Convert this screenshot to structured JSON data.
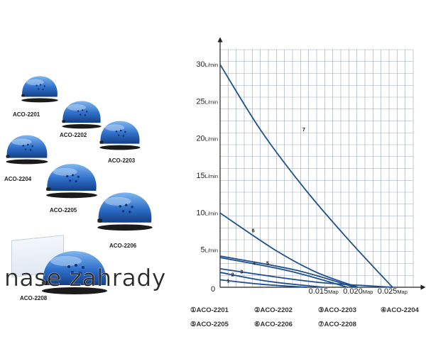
{
  "products": [
    {
      "label": "ACO-2201"
    },
    {
      "label": "ACO-2202"
    },
    {
      "label": "ACO-2203"
    },
    {
      "label": "ACO-2204"
    },
    {
      "label": "ACO-2205"
    },
    {
      "label": "ACO-2206"
    },
    {
      "label": "ACO-2208"
    }
  ],
  "watermark": "nase zahrady",
  "chart_data": {
    "type": "line",
    "title": "",
    "xlabel": "",
    "ylabel": "",
    "xlim": [
      0,
      0.028
    ],
    "ylim": [
      0,
      32
    ],
    "x_origin_label": "0",
    "x_ticks": [
      {
        "value": 0.015,
        "label": "0.015",
        "unit": "Map"
      },
      {
        "value": 0.02,
        "label": "0.020",
        "unit": "Map"
      },
      {
        "value": 0.025,
        "label": "0.025",
        "unit": "Map"
      }
    ],
    "y_ticks": [
      {
        "value": 5,
        "label": "5",
        "unit": "L/min"
      },
      {
        "value": 10,
        "label": "10",
        "unit": "L/min"
      },
      {
        "value": 15,
        "label": "15",
        "unit": "L/min"
      },
      {
        "value": 20,
        "label": "20",
        "unit": "L/min"
      },
      {
        "value": 25,
        "label": "25",
        "unit": "L/min"
      },
      {
        "value": 30,
        "label": "30",
        "unit": "L/min"
      }
    ],
    "grid": true,
    "line_color": "#1d4f8c",
    "series": [
      {
        "name": "ACO-2201",
        "marker": "1",
        "points": [
          [
            0,
            1.0
          ],
          [
            0.006,
            0.4
          ],
          [
            0.0125,
            0
          ]
        ]
      },
      {
        "name": "ACO-2202",
        "marker": "2",
        "points": [
          [
            0,
            2.0
          ],
          [
            0.007,
            0.8
          ],
          [
            0.015,
            0
          ]
        ]
      },
      {
        "name": "ACO-2203",
        "marker": "3",
        "points": [
          [
            0,
            2.5
          ],
          [
            0.008,
            1.4
          ],
          [
            0.015,
            0.6
          ],
          [
            0.025,
            0
          ]
        ]
      },
      {
        "name": "ACO-2204",
        "marker": "4",
        "points": [
          [
            0,
            4.0
          ],
          [
            0.01,
            2.2
          ],
          [
            0.0185,
            0
          ]
        ]
      },
      {
        "name": "ACO-2205",
        "marker": "5",
        "points": [
          [
            0,
            4.2
          ],
          [
            0.011,
            2.3
          ],
          [
            0.0195,
            0
          ]
        ]
      },
      {
        "name": "ACO-2206",
        "marker": "6",
        "points": [
          [
            0,
            10.0
          ],
          [
            0.008,
            5.0
          ],
          [
            0.014,
            2.0
          ],
          [
            0.02,
            0
          ]
        ]
      },
      {
        "name": "ACO-2208",
        "marker": "7",
        "points": [
          [
            0,
            30.0
          ],
          [
            0.006,
            21.0
          ],
          [
            0.0125,
            13.0
          ],
          [
            0.019,
            6.0
          ],
          [
            0.025,
            0
          ]
        ]
      }
    ],
    "legend": [
      "①ACO-2201",
      "②ACO-2202",
      "③ACO-2203",
      "④ACO-2204",
      "⑤ACO-2205",
      "⑥ACO-2206",
      "⑦ACO-2208"
    ],
    "legend_position": "bottom"
  }
}
